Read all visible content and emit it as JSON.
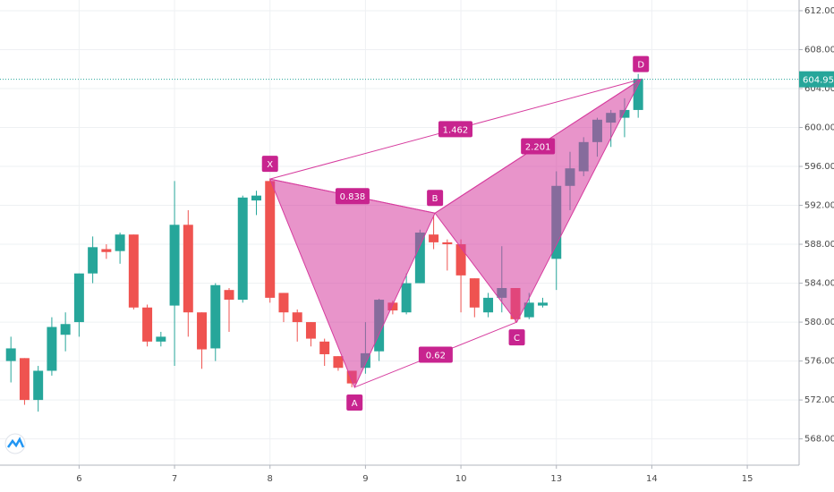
{
  "chart_data": {
    "type": "candlestick",
    "up_color": "#26a69a",
    "down_color": "#ef5350",
    "pattern_color": "#d63c9e",
    "grid": true,
    "x": [
      0,
      1,
      2,
      3,
      4,
      5,
      6,
      7,
      8,
      9,
      10,
      11,
      12,
      13,
      14,
      15,
      16,
      17,
      18,
      19,
      20,
      21,
      22,
      23,
      24,
      25,
      26,
      27,
      28,
      29,
      30,
      31,
      32,
      33,
      34,
      35,
      36,
      37,
      38,
      39,
      40,
      41,
      42,
      43,
      44,
      45,
      46
    ],
    "open": [
      576,
      576.3,
      572,
      575,
      578.7,
      580,
      585,
      587.5,
      587.3,
      589,
      581.5,
      578,
      581.7,
      590,
      581,
      577.3,
      583.3,
      582.3,
      592.5,
      594.5,
      583,
      581,
      580,
      578,
      576.5,
      575,
      575.3,
      577,
      582,
      581,
      584,
      589,
      588.2,
      588,
      584.5,
      581,
      582.5,
      583.5,
      580.5,
      581.7,
      586.5,
      594,
      595.5,
      598.5,
      600.5,
      601,
      601.8
    ],
    "high": [
      578.5,
      576.3,
      575.5,
      580.5,
      581,
      585,
      588.8,
      588,
      589.2,
      589,
      581.8,
      579,
      594.5,
      591.5,
      581,
      584,
      583.5,
      593,
      593.5,
      594.7,
      583,
      581.3,
      580,
      578.3,
      576.5,
      575,
      580,
      582.4,
      582.2,
      585,
      589.5,
      591,
      588.5,
      588.5,
      584.5,
      583,
      587.8,
      583.5,
      583,
      582.5,
      595.5,
      597.5,
      599,
      601,
      601.8,
      603,
      605.5
    ],
    "low": [
      573.8,
      571.5,
      570.8,
      574.5,
      577,
      578.5,
      584,
      586.5,
      586,
      581.3,
      577.5,
      577.5,
      575.5,
      578.5,
      575.2,
      576,
      579,
      582,
      591,
      582,
      580,
      578,
      577.5,
      575.5,
      575,
      573.3,
      574.7,
      576,
      580.8,
      580.8,
      584,
      587.5,
      585.3,
      581,
      580.5,
      580.5,
      581,
      580,
      580.3,
      581.5,
      583.3,
      591.5,
      595,
      597,
      598,
      599,
      601
    ],
    "close": [
      577.3,
      572,
      575,
      579.5,
      579.8,
      585,
      587.7,
      587.2,
      589,
      581.5,
      578,
      578.5,
      590,
      581,
      577.2,
      583.8,
      582.3,
      592.8,
      593,
      582.5,
      581,
      580,
      578.3,
      576.7,
      575.3,
      573.7,
      576.8,
      582.3,
      581.2,
      584,
      589.2,
      588.2,
      588,
      584.8,
      581.5,
      582.5,
      583.5,
      580.3,
      582,
      582,
      594,
      595.8,
      598.5,
      600.8,
      601.5,
      601.8,
      605
    ],
    "xlim": [
      -0.8,
      57.8
    ],
    "xticks": [
      {
        "value": 5,
        "label": "6"
      },
      {
        "value": 12,
        "label": "7"
      },
      {
        "value": 19,
        "label": "8"
      },
      {
        "value": 26,
        "label": "9"
      },
      {
        "value": 33,
        "label": "10"
      },
      {
        "value": 40,
        "label": "13"
      },
      {
        "value": 47,
        "label": "14"
      },
      {
        "value": 54,
        "label": "15"
      }
    ],
    "ylim": [
      565.3,
      613.1
    ],
    "yticks": [
      {
        "value": 568,
        "label": "568.00"
      },
      {
        "value": 572,
        "label": "572.00"
      },
      {
        "value": 576,
        "label": "576.00"
      },
      {
        "value": 580,
        "label": "580.00"
      },
      {
        "value": 584,
        "label": "584.00"
      },
      {
        "value": 588,
        "label": "588.00"
      },
      {
        "value": 592,
        "label": "592.00"
      },
      {
        "value": 596,
        "label": "596.00"
      },
      {
        "value": 600,
        "label": "600.00"
      },
      {
        "value": 604,
        "label": "604.00"
      },
      {
        "value": 608,
        "label": "608.00"
      },
      {
        "value": 612,
        "label": "612.00"
      }
    ],
    "last_price": 604.95,
    "pattern": {
      "points": [
        {
          "label": "X",
          "x": 19,
          "y": 594.7
        },
        {
          "label": "A",
          "x": 25.2,
          "y": 573.3
        },
        {
          "label": "B",
          "x": 31.1,
          "y": 591.2
        },
        {
          "label": "C",
          "x": 37.1,
          "y": 580
        },
        {
          "label": "D",
          "x": 46.2,
          "y": 604.95
        }
      ],
      "ratios": [
        0.838,
        1.462,
        0.62,
        2.201
      ]
    }
  }
}
